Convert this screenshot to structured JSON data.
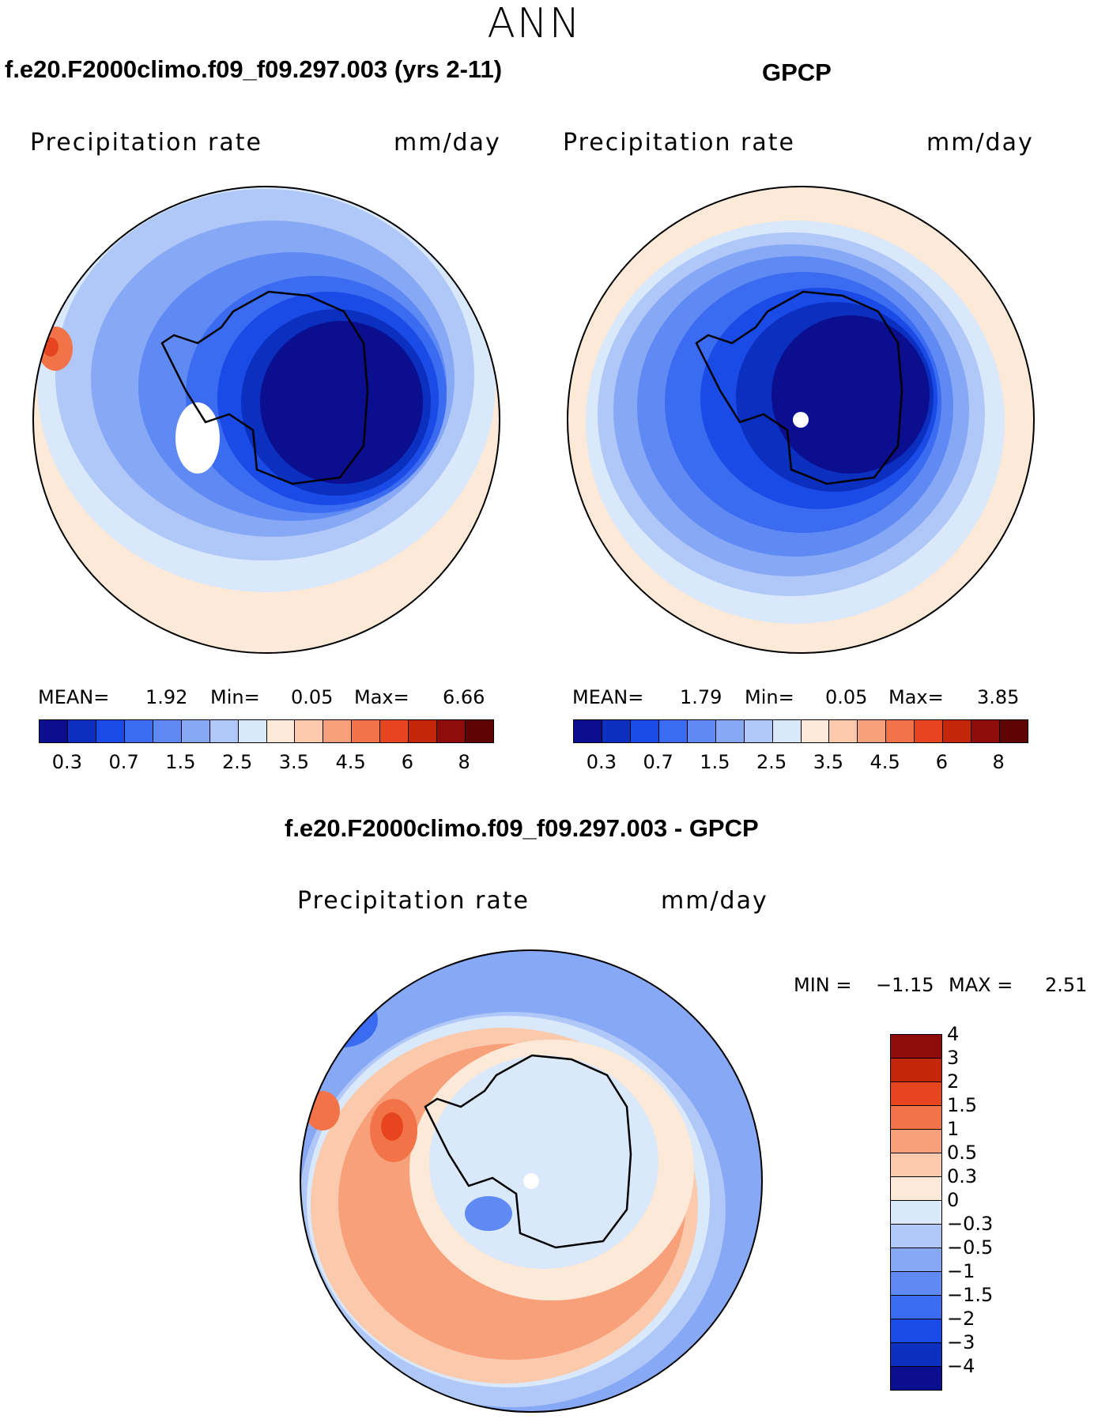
{
  "season": "ANN",
  "panels": [
    {
      "title": "f.e20.F2000climo.f09_f09.297.003 (yrs 2-11)",
      "variable": "Precipitation rate",
      "units": "mm/day",
      "stats": {
        "mean_label": "MEAN=",
        "mean": "1.92",
        "min_label": "Min=",
        "min": "0.05",
        "max_label": "Max=",
        "max": "6.66"
      }
    },
    {
      "title": "GPCP",
      "variable": "Precipitation rate",
      "units": "mm/day",
      "stats": {
        "mean_label": "MEAN=",
        "mean": "1.79",
        "min_label": "Min=",
        "min": "0.05",
        "max_label": "Max=",
        "max": "3.85"
      }
    },
    {
      "title": "f.e20.F2000climo.f09_f09.297.003 - GPCP",
      "variable": "Precipitation rate",
      "units": "mm/day",
      "stats": {
        "min_label": "MIN =",
        "min": "−1.15",
        "max_label": "MAX =",
        "max": "2.51"
      }
    }
  ],
  "colorbar_abs": {
    "colors": [
      "#0a0e8f",
      "#0b2fbf",
      "#1a4be6",
      "#3a6bf0",
      "#5f8af3",
      "#87a8f5",
      "#b0c8f7",
      "#d9e8fa",
      "#fde9d7",
      "#fbc9ac",
      "#f8a07a",
      "#f37348",
      "#e6451f",
      "#c4260c",
      "#8e0c0c",
      "#5e0404"
    ],
    "ticks": [
      "0.3",
      "0.7",
      "1.5",
      "2.5",
      "3.5",
      "4.5",
      "6",
      "8"
    ]
  },
  "colorbar_diff": {
    "colors": [
      "#0a0e8f",
      "#0b2fbf",
      "#1a4be6",
      "#3a6bf0",
      "#5f8af3",
      "#87a8f5",
      "#b0c8f7",
      "#d9e8fa",
      "#fde9d7",
      "#fbc9ac",
      "#f8a07a",
      "#f37348",
      "#e6451f",
      "#c4260c",
      "#8e0c0c"
    ],
    "ticks": [
      "−4",
      "−3",
      "−2",
      "−1.5",
      "−1",
      "−0.5",
      "−0.3",
      "0",
      "0.3",
      "0.5",
      "1",
      "1.5",
      "2",
      "3",
      "4"
    ]
  }
}
